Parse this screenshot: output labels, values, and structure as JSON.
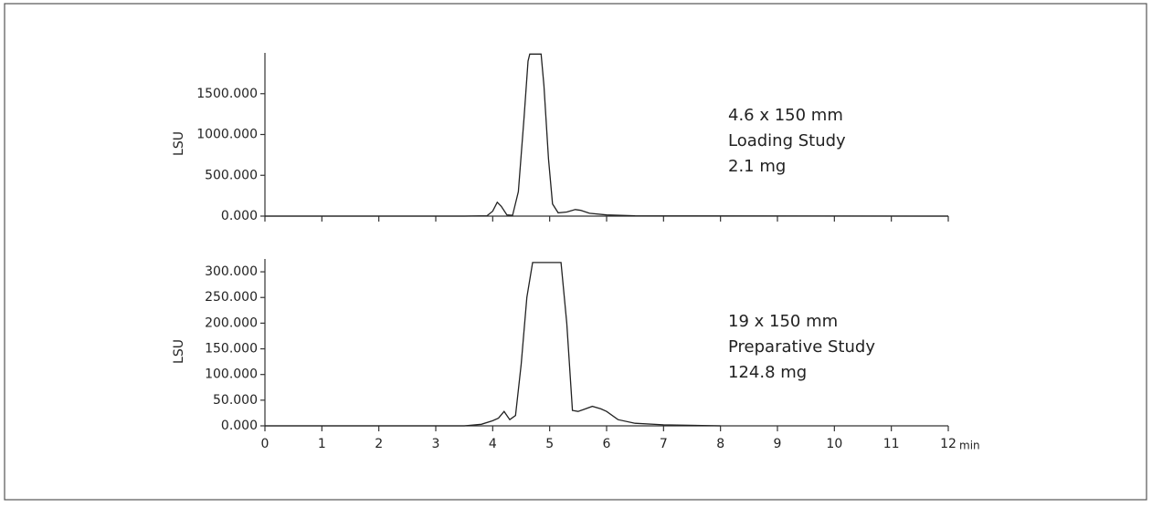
{
  "chart_data": [
    {
      "type": "line",
      "ylabel": "LSU",
      "color": "#222",
      "x": [
        0,
        3.5,
        3.9,
        4.0,
        4.08,
        4.15,
        4.25,
        4.35,
        4.45,
        4.55,
        4.62,
        4.65,
        4.85,
        4.9,
        4.98,
        5.05,
        5.15,
        5.3,
        5.45,
        5.55,
        5.7,
        6.0,
        6.5,
        7,
        12
      ],
      "values": [
        0,
        0,
        5,
        60,
        170,
        120,
        15,
        10,
        300,
        1200,
        1900,
        1985,
        1985,
        1600,
        700,
        150,
        40,
        50,
        80,
        70,
        35,
        15,
        5,
        2,
        0
      ],
      "xlim": [
        0,
        12
      ],
      "xticks": [
        0,
        1,
        2,
        3,
        4,
        5,
        6,
        7,
        8,
        9,
        10,
        11,
        12
      ],
      "ylim": [
        0,
        2000
      ],
      "yticks": [
        {
          "value": 0,
          "label": "0.000"
        },
        {
          "value": 500,
          "label": "500.000"
        },
        {
          "value": 1000,
          "label": "1000.000"
        },
        {
          "value": 1500,
          "label": "1500.000"
        }
      ],
      "annotations": [
        "4.6 x 150 mm",
        "Loading Study",
        "2.1 mg"
      ]
    },
    {
      "type": "line",
      "ylabel": "LSU",
      "xlabel": "min",
      "color": "#222",
      "x": [
        0,
        3.5,
        3.8,
        4.0,
        4.1,
        4.2,
        4.3,
        4.4,
        4.5,
        4.6,
        4.7,
        5.2,
        5.3,
        5.4,
        5.5,
        5.6,
        5.75,
        5.9,
        6.0,
        6.2,
        6.5,
        7,
        8
      ],
      "values": [
        0,
        0,
        3,
        10,
        15,
        28,
        12,
        20,
        120,
        250,
        318,
        318,
        200,
        30,
        28,
        32,
        38,
        33,
        28,
        12,
        5,
        2,
        0
      ],
      "xlim": [
        0,
        12
      ],
      "xticks": [
        0,
        1,
        2,
        3,
        4,
        5,
        6,
        7,
        8,
        9,
        10,
        11,
        12
      ],
      "ylim": [
        0,
        325
      ],
      "yticks": [
        {
          "value": 0,
          "label": "0.000"
        },
        {
          "value": 50,
          "label": "50.000"
        },
        {
          "value": 100,
          "label": "100.000"
        },
        {
          "value": 150,
          "label": "150.000"
        },
        {
          "value": 200,
          "label": "200.000"
        },
        {
          "value": 250,
          "label": "250.000"
        },
        {
          "value": 300,
          "label": "300.000"
        }
      ],
      "annotations": [
        "19 x 150 mm",
        "Preparative Study",
        "124.8 mg"
      ]
    }
  ]
}
